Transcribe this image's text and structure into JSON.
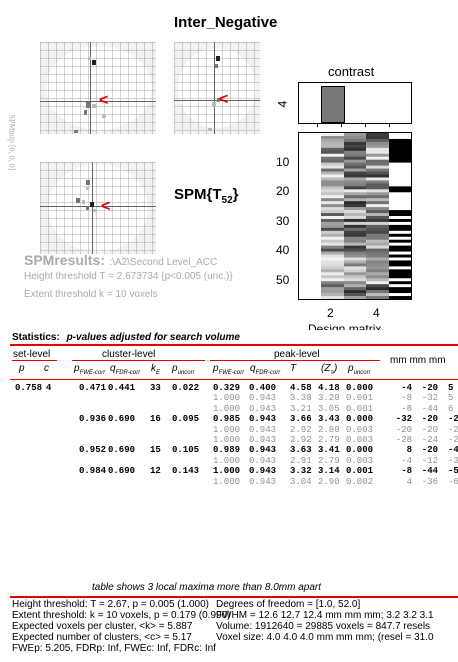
{
  "header": {
    "title": "Inter_Negative",
    "spm_label_main": "SPM{T",
    "spm_label_sub": "52",
    "spm_label_close": "}",
    "side_label": "SPMmip [0, 0, 0]"
  },
  "contrast": {
    "title": "contrast",
    "y_tick": "4"
  },
  "design_matrix": {
    "y_ticks": [
      "10",
      "20",
      "30",
      "40",
      "50"
    ],
    "x_ticks": [
      "2",
      "4"
    ],
    "xlabel": "Design matrix"
  },
  "results_info": {
    "spmresults_label": "SPMresults:",
    "path": ":\\A2\\Second Level_ACC",
    "height_threshold": "Height threshold T = 2.673734  {p<0.005 (unc.)}",
    "extent_threshold": "Extent threshold k = 10 voxels"
  },
  "statistics": {
    "title": "Statistics:",
    "subtitle": "p-values adjusted for search volume",
    "groups": {
      "set": "set-level",
      "cluster": "cluster-level",
      "peak": "peak-level",
      "mm": "mm mm mm"
    },
    "cols": {
      "set_p": "p",
      "set_c": "c",
      "cl_pfwe": "p",
      "cl_pfwe_sub": "FWE-corr",
      "cl_qfdr": "q",
      "cl_qfdr_sub": "FDR-corr",
      "cl_ke": "k",
      "cl_ke_sub": "E",
      "cl_punc": "p",
      "cl_punc_sub": "uncorr",
      "pk_pfwe": "p",
      "pk_pfwe_sub": "FWE-corr",
      "pk_qfdr": "q",
      "pk_qfdr_sub": "FDR-corr",
      "pk_t": "T",
      "pk_z": "(Z",
      "pk_z_sub": "≡",
      "pk_z_close": ")",
      "pk_punc": "p",
      "pk_punc_sub": "uncorr"
    },
    "rows": [
      {
        "set_p": "0.758",
        "set_c": "4",
        "cl_pfwe": "0.471",
        "cl_qfdr": "0.441",
        "cl_ke": "33",
        "cl_punc": "0.022",
        "pk_pfwe": "0.329",
        "pk_qfdr": "0.400",
        "pk_t": "4.58",
        "pk_z": "4.18",
        "pk_punc": "0.000",
        "x": "-4",
        "y": "-20",
        "z": "5",
        "grey": false
      },
      {
        "set_p": "",
        "set_c": "",
        "cl_pfwe": "",
        "cl_qfdr": "",
        "cl_ke": "",
        "cl_punc": "",
        "pk_pfwe": "1.000",
        "pk_qfdr": "0.943",
        "pk_t": "3.38",
        "pk_z": "3.20",
        "pk_punc": "0.001",
        "x": "-8",
        "y": "-32",
        "z": "5",
        "grey": true
      },
      {
        "set_p": "",
        "set_c": "",
        "cl_pfwe": "",
        "cl_qfdr": "",
        "cl_ke": "",
        "cl_punc": "",
        "pk_pfwe": "1.000",
        "pk_qfdr": "0.943",
        "pk_t": "3.21",
        "pk_z": "3.05",
        "pk_punc": "0.001",
        "x": "-8",
        "y": "-44",
        "z": "6",
        "grey": true
      },
      {
        "set_p": "",
        "set_c": "",
        "cl_pfwe": "0.936",
        "cl_qfdr": "0.690",
        "cl_ke": "16",
        "cl_punc": "0.095",
        "pk_pfwe": "0.985",
        "pk_qfdr": "0.943",
        "pk_t": "3.66",
        "pk_z": "3.43",
        "pk_punc": "0.000",
        "x": "-32",
        "y": "-20",
        "z": "-2",
        "grey": false
      },
      {
        "set_p": "",
        "set_c": "",
        "cl_pfwe": "",
        "cl_qfdr": "",
        "cl_ke": "",
        "cl_punc": "",
        "pk_pfwe": "1.000",
        "pk_qfdr": "0.943",
        "pk_t": "2.92",
        "pk_z": "2.80",
        "pk_punc": "0.003",
        "x": "-20",
        "y": "-20",
        "z": "-2",
        "grey": true
      },
      {
        "set_p": "",
        "set_c": "",
        "cl_pfwe": "",
        "cl_qfdr": "",
        "cl_ke": "",
        "cl_punc": "",
        "pk_pfwe": "1.000",
        "pk_qfdr": "0.943",
        "pk_t": "2.92",
        "pk_z": "2.79",
        "pk_punc": "0.003",
        "x": "-28",
        "y": "-24",
        "z": "-2",
        "grey": true
      },
      {
        "set_p": "",
        "set_c": "",
        "cl_pfwe": "0.952",
        "cl_qfdr": "0.690",
        "cl_ke": "15",
        "cl_punc": "0.105",
        "pk_pfwe": "0.989",
        "pk_qfdr": "0.943",
        "pk_t": "3.63",
        "pk_z": "3.41",
        "pk_punc": "0.000",
        "x": "8",
        "y": "-20",
        "z": "-4",
        "grey": false
      },
      {
        "set_p": "",
        "set_c": "",
        "cl_pfwe": "",
        "cl_qfdr": "",
        "cl_ke": "",
        "cl_punc": "",
        "pk_pfwe": "1.000",
        "pk_qfdr": "0.943",
        "pk_t": "2.91",
        "pk_z": "2.79",
        "pk_punc": "0.003",
        "x": "-4",
        "y": "-12",
        "z": "-3",
        "grey": true
      },
      {
        "set_p": "",
        "set_c": "",
        "cl_pfwe": "0.984",
        "cl_qfdr": "0.690",
        "cl_ke": "12",
        "cl_punc": "0.143",
        "pk_pfwe": "1.000",
        "pk_qfdr": "0.943",
        "pk_t": "3.32",
        "pk_z": "3.14",
        "pk_punc": "0.001",
        "x": "-8",
        "y": "-44",
        "z": "-5",
        "grey": false
      },
      {
        "set_p": "",
        "set_c": "",
        "cl_pfwe": "",
        "cl_qfdr": "",
        "cl_ke": "",
        "cl_punc": "",
        "pk_pfwe": "1.000",
        "pk_qfdr": "0.943",
        "pk_t": "3.04",
        "pk_z": "2.90",
        "pk_punc": "0.002",
        "x": "4",
        "y": "-36",
        "z": "-6",
        "grey": true
      }
    ]
  },
  "footer": {
    "note": "table shows 3 local maxima more than 8.0mm apart",
    "left": [
      "Height threshold: T = 2.67, p = 0.005 (1.000)",
      "Extent threshold: k = 10 voxels, p = 0.179 (0.990)",
      "Expected voxels per cluster, <k> = 5.887",
      "Expected number of clusters, <c> = 5.17",
      "FWEp: 5.205, FDRp: Inf, FWEc: Inf, FDRc: Inf"
    ],
    "right": [
      "Degrees of freedom = [1.0, 52.0]",
      "FWHM = 12.6 12.7 12.4 mm mm mm; 3.2 3.2 3.1",
      "Volume: 1912640 = 29885 voxels = 847.7 resels",
      "Voxel size: 4.0 4.0 4.0 mm mm mm; (resel = 31.0"
    ]
  },
  "colors": {
    "accent_red": "#e00000",
    "faded_text": "#aaaaaa",
    "grey_row": "#909090"
  }
}
